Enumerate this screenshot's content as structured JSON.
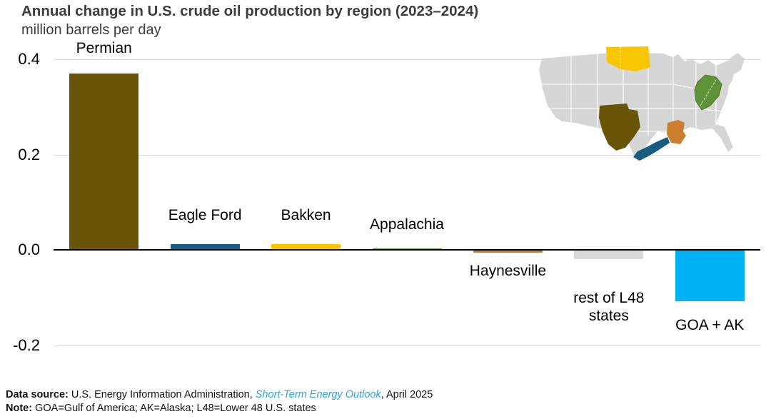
{
  "header": {
    "title": "Annual change in U.S. crude oil production by region (2023–2024)",
    "subtitle": "million barrels per day"
  },
  "chart_data": {
    "type": "bar",
    "title": "Annual change in U.S. crude oil production by region (2023–2024)",
    "xlabel": "",
    "ylabel": "million barrels per day",
    "ylim": [
      -0.2,
      0.4
    ],
    "grid": "horizontal-light-gray",
    "legend": "none (labels placed at bars; inset U.S. map shows colored regions)",
    "yticks": [
      {
        "value": 0.4,
        "label": "0.4"
      },
      {
        "value": 0.2,
        "label": "0.2"
      },
      {
        "value": 0.0,
        "label": "0.0"
      },
      {
        "value": -0.2,
        "label": "-0.2"
      }
    ],
    "points": [
      {
        "label": "Permian",
        "value": 0.37,
        "color": "#6a5407",
        "label_side": "above",
        "label_offset": 23,
        "label_lines": [
          "Permian"
        ]
      },
      {
        "label": "Eagle Ford",
        "value": 0.013,
        "color": "#175d82",
        "label_side": "above",
        "label_offset": 28,
        "label_lines": [
          "Eagle Ford"
        ]
      },
      {
        "label": "Bakken",
        "value": 0.013,
        "color": "#f7c600",
        "label_side": "above",
        "label_offset": 28,
        "label_lines": [
          "Bakken"
        ]
      },
      {
        "label": "Appalachia",
        "value": 0.004,
        "color": "#5f9339",
        "label_side": "above",
        "label_offset": 21,
        "label_lines": [
          "Appalachia"
        ]
      },
      {
        "label": "Haynesville",
        "value": -0.006,
        "color": "#cb7e2e",
        "label_side": "below",
        "label_offset": 13,
        "label_lines": [
          "Haynesville"
        ]
      },
      {
        "label": "rest of L48 states",
        "value": -0.02,
        "color": "#d9d9d9",
        "label_side": "below",
        "label_offset": 42,
        "label_lines": [
          "rest of L48",
          "states"
        ]
      },
      {
        "label": "GOA + AK",
        "value": -0.108,
        "color": "#00b2f3",
        "label_side": "below",
        "label_offset": 21,
        "label_lines": [
          "GOA + AK"
        ]
      }
    ],
    "map": {
      "land_color": "#d6d6d6",
      "state_border_color": "#ffffff",
      "regions": [
        "Bakken",
        "Appalachia",
        "Permian",
        "Eagle Ford",
        "Haynesville"
      ]
    }
  },
  "footer": {
    "source_label": "Data source:",
    "source_pre": " U.S. Energy Information Administration, ",
    "source_link": "Short-Term Energy Outlook",
    "source_post": ", April 2025",
    "note_label": "Note:",
    "note_text": " GOA=Gulf of America; AK=Alaska; L48=Lower 48 U.S. states"
  }
}
